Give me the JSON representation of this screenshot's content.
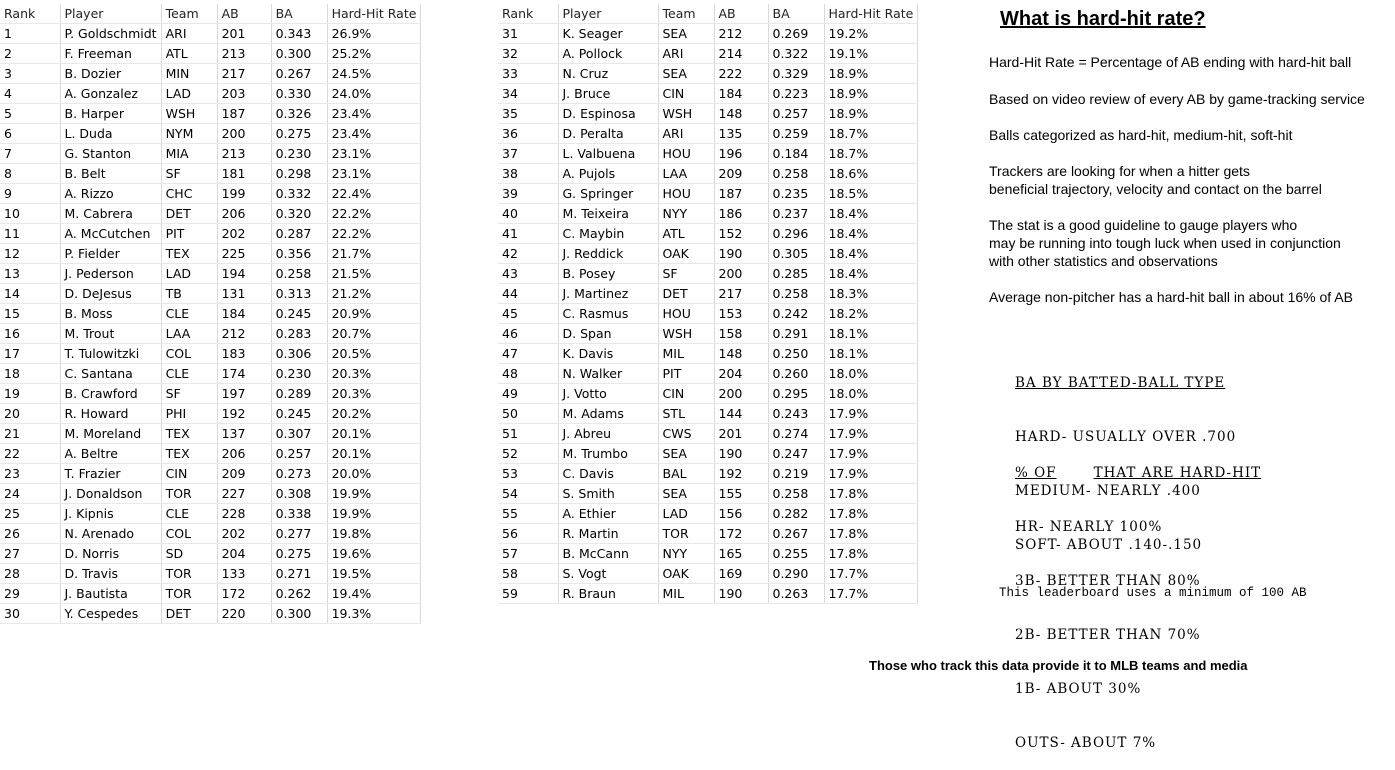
{
  "columns": [
    "Rank",
    "Player",
    "Team",
    "AB",
    "BA",
    "Hard-Hit Rate"
  ],
  "left_rows": [
    [
      "1",
      "P. Goldschmidt",
      "ARI",
      "201",
      "0.343",
      "26.9%"
    ],
    [
      "2",
      "F. Freeman",
      "ATL",
      "213",
      "0.300",
      "25.2%"
    ],
    [
      "3",
      "B. Dozier",
      "MIN",
      "217",
      "0.267",
      "24.5%"
    ],
    [
      "4",
      "A. Gonzalez",
      "LAD",
      "203",
      "0.330",
      "24.0%"
    ],
    [
      "5",
      "B. Harper",
      "WSH",
      "187",
      "0.326",
      "23.4%"
    ],
    [
      "6",
      "L. Duda",
      "NYM",
      "200",
      "0.275",
      "23.4%"
    ],
    [
      "7",
      "G. Stanton",
      "MIA",
      "213",
      "0.230",
      "23.1%"
    ],
    [
      "8",
      "B. Belt",
      "SF",
      "181",
      "0.298",
      "23.1%"
    ],
    [
      "9",
      "A. Rizzo",
      "CHC",
      "199",
      "0.332",
      "22.4%"
    ],
    [
      "10",
      "M. Cabrera",
      "DET",
      "206",
      "0.320",
      "22.2%"
    ],
    [
      "11",
      "A. McCutchen",
      "PIT",
      "202",
      "0.287",
      "22.2%"
    ],
    [
      "12",
      "P. Fielder",
      "TEX",
      "225",
      "0.356",
      "21.7%"
    ],
    [
      "13",
      "J. Pederson",
      "LAD",
      "194",
      "0.258",
      "21.5%"
    ],
    [
      "14",
      "D. DeJesus",
      "TB",
      "131",
      "0.313",
      "21.2%"
    ],
    [
      "15",
      "B. Moss",
      "CLE",
      "184",
      "0.245",
      "20.9%"
    ],
    [
      "16",
      "M. Trout",
      "LAA",
      "212",
      "0.283",
      "20.7%"
    ],
    [
      "17",
      "T. Tulowitzki",
      "COL",
      "183",
      "0.306",
      "20.5%"
    ],
    [
      "18",
      "C. Santana",
      "CLE",
      "174",
      "0.230",
      "20.3%"
    ],
    [
      "19",
      "B. Crawford",
      "SF",
      "197",
      "0.289",
      "20.3%"
    ],
    [
      "20",
      "R. Howard",
      "PHI",
      "192",
      "0.245",
      "20.2%"
    ],
    [
      "21",
      "M. Moreland",
      "TEX",
      "137",
      "0.307",
      "20.1%"
    ],
    [
      "22",
      "A. Beltre",
      "TEX",
      "206",
      "0.257",
      "20.1%"
    ],
    [
      "23",
      "T. Frazier",
      "CIN",
      "209",
      "0.273",
      "20.0%"
    ],
    [
      "24",
      "J. Donaldson",
      "TOR",
      "227",
      "0.308",
      "19.9%"
    ],
    [
      "25",
      "J. Kipnis",
      "CLE",
      "228",
      "0.338",
      "19.9%"
    ],
    [
      "26",
      "N. Arenado",
      "COL",
      "202",
      "0.277",
      "19.8%"
    ],
    [
      "27",
      "D. Norris",
      "SD",
      "204",
      "0.275",
      "19.6%"
    ],
    [
      "28",
      "D. Travis",
      "TOR",
      "133",
      "0.271",
      "19.5%"
    ],
    [
      "29",
      "J. Bautista",
      "TOR",
      "172",
      "0.262",
      "19.4%"
    ],
    [
      "30",
      "Y. Cespedes",
      "DET",
      "220",
      "0.300",
      "19.3%"
    ]
  ],
  "right_rows": [
    [
      "31",
      "K. Seager",
      "SEA",
      "212",
      "0.269",
      "19.2%"
    ],
    [
      "32",
      "A. Pollock",
      "ARI",
      "214",
      "0.322",
      "19.1%"
    ],
    [
      "33",
      "N. Cruz",
      "SEA",
      "222",
      "0.329",
      "18.9%"
    ],
    [
      "34",
      "J. Bruce",
      "CIN",
      "184",
      "0.223",
      "18.9%"
    ],
    [
      "35",
      "D. Espinosa",
      "WSH",
      "148",
      "0.257",
      "18.9%"
    ],
    [
      "36",
      "D. Peralta",
      "ARI",
      "135",
      "0.259",
      "18.7%"
    ],
    [
      "37",
      "L. Valbuena",
      "HOU",
      "196",
      "0.184",
      "18.7%"
    ],
    [
      "38",
      "A. Pujols",
      "LAA",
      "209",
      "0.258",
      "18.6%"
    ],
    [
      "39",
      "G. Springer",
      "HOU",
      "187",
      "0.235",
      "18.5%"
    ],
    [
      "40",
      "M. Teixeira",
      "NYY",
      "186",
      "0.237",
      "18.4%"
    ],
    [
      "41",
      "C. Maybin",
      "ATL",
      "152",
      "0.296",
      "18.4%"
    ],
    [
      "42",
      "J. Reddick",
      "OAK",
      "190",
      "0.305",
      "18.4%"
    ],
    [
      "43",
      "B. Posey",
      "SF",
      "200",
      "0.285",
      "18.4%"
    ],
    [
      "44",
      "J. Martinez",
      "DET",
      "217",
      "0.258",
      "18.3%"
    ],
    [
      "45",
      "C. Rasmus",
      "HOU",
      "153",
      "0.242",
      "18.2%"
    ],
    [
      "46",
      "D. Span",
      "WSH",
      "158",
      "0.291",
      "18.1%"
    ],
    [
      "47",
      "K. Davis",
      "MIL",
      "148",
      "0.250",
      "18.1%"
    ],
    [
      "48",
      "N. Walker",
      "PIT",
      "204",
      "0.260",
      "18.0%"
    ],
    [
      "49",
      "J. Votto",
      "CIN",
      "200",
      "0.295",
      "18.0%"
    ],
    [
      "50",
      "M. Adams",
      "STL",
      "144",
      "0.243",
      "17.9%"
    ],
    [
      "51",
      "J. Abreu",
      "CWS",
      "201",
      "0.274",
      "17.9%"
    ],
    [
      "52",
      "M. Trumbo",
      "SEA",
      "190",
      "0.247",
      "17.9%"
    ],
    [
      "53",
      "C. Davis",
      "BAL",
      "192",
      "0.219",
      "17.9%"
    ],
    [
      "54",
      "S. Smith",
      "SEA",
      "155",
      "0.258",
      "17.8%"
    ],
    [
      "55",
      "A. Ethier",
      "LAD",
      "156",
      "0.282",
      "17.8%"
    ],
    [
      "56",
      "R. Martin",
      "TOR",
      "172",
      "0.267",
      "17.8%"
    ],
    [
      "57",
      "B. McCann",
      "NYY",
      "165",
      "0.255",
      "17.8%"
    ],
    [
      "58",
      "S. Vogt",
      "OAK",
      "169",
      "0.290",
      "17.7%"
    ],
    [
      "59",
      "R. Braun",
      "MIL",
      "190",
      "0.263",
      "17.7%"
    ]
  ],
  "sidebar": {
    "title": "What is hard-hit rate?",
    "p1": "Hard-Hit Rate = Percentage of AB ending with hard-hit ball",
    "p2": "Based on video review of every AB by game-tracking service",
    "p3": "Balls categorized as hard-hit, medium-hit, soft-hit",
    "p4a": "Trackers are looking for when a hitter gets",
    "p4b": "beneficial trajectory, velocity and contact on the barrel",
    "p5a": "The stat is a good guideline to gauge players who",
    "p5b": "may be running into tough luck when used in conjunction",
    "p5c": "with other statistics and observations",
    "p6": "Average non-pitcher has a hard-hit ball in about 16% of AB"
  },
  "batted_ball": {
    "heading": "BA BY BATTED-BALL TYPE",
    "lines": [
      "HARD- USUALLY OVER .700",
      "MEDIUM- NEARLY .400",
      "SOFT- ABOUT .140-.150"
    ]
  },
  "hard_hit_share": {
    "heading_a": "% OF",
    "heading_b": "THAT ARE HARD-HIT",
    "lines": [
      "HR- NEARLY 100%",
      "3B- BETTER THAN 80%",
      "2B- BETTER THAN 70%",
      "1B- ABOUT 30%",
      "OUTS- ABOUT 7%"
    ]
  },
  "note": "This leaderboard uses a minimum of 100 AB",
  "footer": "Those who track this data provide it to MLB teams and media"
}
